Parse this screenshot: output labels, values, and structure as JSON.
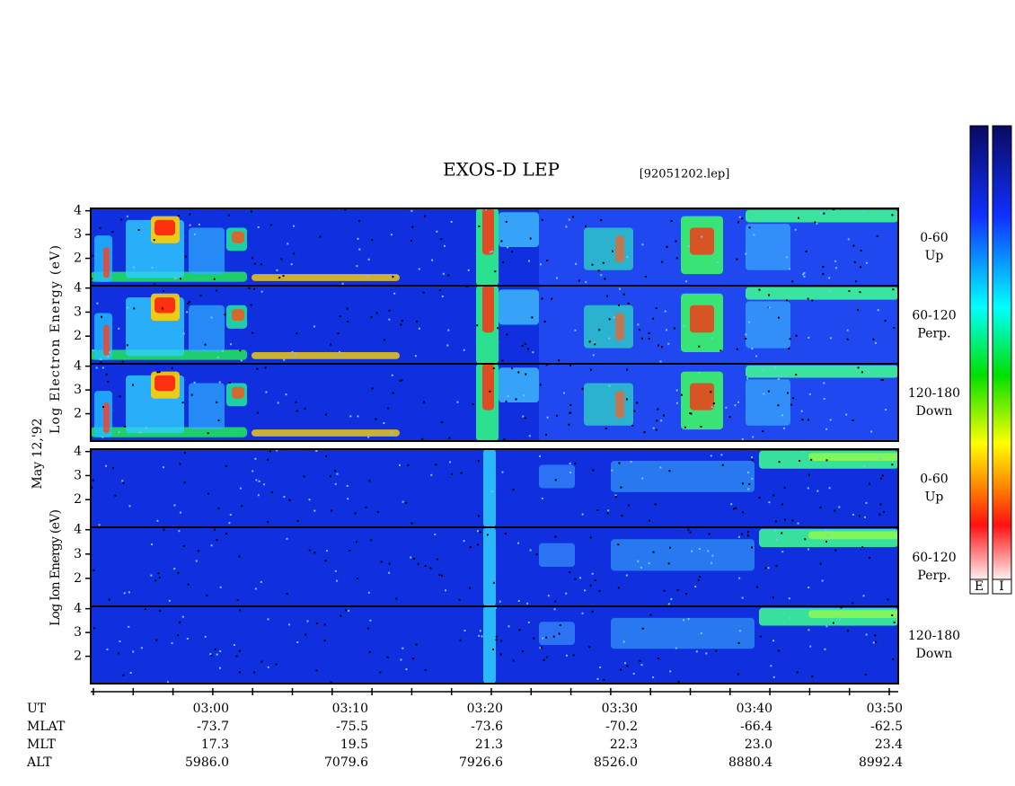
{
  "header": {
    "title": "EXOS-D LEP",
    "file": "[92051202.lep]"
  },
  "side_labels": {
    "electron": "Log  Electron  Energy (eV)",
    "date": "May 12,'92",
    "ion": "Log  Ion  Energy (eV)"
  },
  "yticks": [
    2,
    3,
    4
  ],
  "ylim": [
    0.85,
    4.1
  ],
  "panels": [
    {
      "range": "0-60",
      "direction": "Up"
    },
    {
      "range": "60-120",
      "direction": "Perp."
    },
    {
      "range": "120-180",
      "direction": "Down"
    },
    {
      "range": "0-60",
      "direction": "Up"
    },
    {
      "range": "60-120",
      "direction": "Perp."
    },
    {
      "range": "120-180",
      "direction": "Down"
    }
  ],
  "colorbar_labels": [
    "E",
    "I"
  ],
  "orbit_table": {
    "rows": [
      [
        "UT",
        "03:00",
        "03:10",
        "03:20",
        "03:30",
        "03:40",
        "03:50"
      ],
      [
        "MLAT",
        "-73.7",
        "-75.5",
        "-73.6",
        "-70.2",
        "-66.4",
        "-62.5"
      ],
      [
        "MLT",
        "17.3",
        "19.5",
        "21.3",
        "22.3",
        "23.0",
        "23.4"
      ],
      [
        "ALT",
        "5986.0",
        "7079.6",
        "7926.6",
        "8526.0",
        "8880.4",
        "8992.4"
      ]
    ]
  }
}
